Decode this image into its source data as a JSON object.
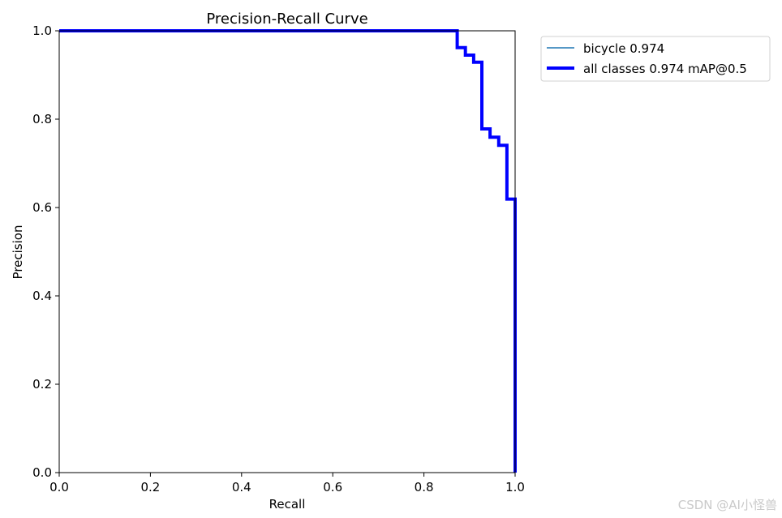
{
  "chart_data": {
    "type": "line",
    "title": "Precision-Recall Curve",
    "xlabel": "Recall",
    "ylabel": "Precision",
    "xlim": [
      0,
      1
    ],
    "ylim": [
      0,
      1
    ],
    "grid": false,
    "legend_position": "outside-right",
    "x_ticks": [
      "0.0",
      "0.2",
      "0.4",
      "0.6",
      "0.8",
      "1.0"
    ],
    "y_ticks": [
      "0.0",
      "0.2",
      "0.4",
      "0.6",
      "0.8",
      "1.0"
    ],
    "series": [
      {
        "name": "bicycle 0.974",
        "color": "#1f77b4",
        "line": "thin",
        "x": [
          0.0,
          0.873,
          0.873,
          0.891,
          0.891,
          0.909,
          0.909,
          0.927,
          0.927,
          0.945,
          0.945,
          0.964,
          0.964,
          0.982,
          0.982,
          1.0,
          1.0
        ],
        "y": [
          1.0,
          1.0,
          0.962,
          0.962,
          0.945,
          0.945,
          0.929,
          0.929,
          0.778,
          0.778,
          0.759,
          0.759,
          0.741,
          0.741,
          0.619,
          0.619,
          0.0
        ]
      },
      {
        "name": "all classes 0.974 mAP@0.5",
        "color": "#0000ff",
        "line": "thick",
        "x": [
          0.0,
          0.873,
          0.873,
          0.891,
          0.891,
          0.909,
          0.909,
          0.927,
          0.927,
          0.945,
          0.945,
          0.964,
          0.964,
          0.982,
          0.982,
          1.0,
          1.0
        ],
        "y": [
          1.0,
          1.0,
          0.962,
          0.962,
          0.945,
          0.945,
          0.929,
          0.929,
          0.778,
          0.778,
          0.759,
          0.759,
          0.741,
          0.741,
          0.619,
          0.619,
          0.0
        ]
      }
    ]
  },
  "watermark": "CSDN @AI小怪兽"
}
